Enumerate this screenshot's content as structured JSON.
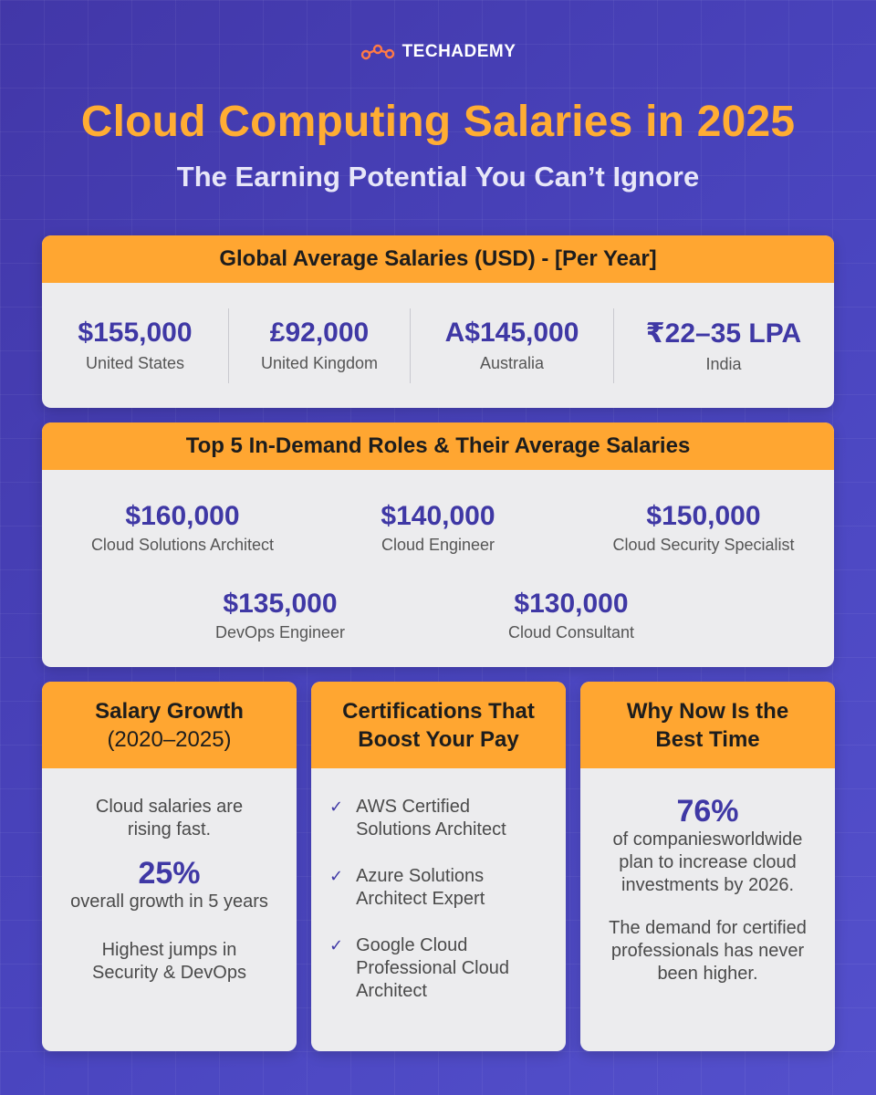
{
  "brand": {
    "logo_icon": "connected-circles-logo",
    "name_part1": "TECH",
    "name_part2": "ADEMY"
  },
  "title": "Cloud Computing Salaries in 2025",
  "subtitle": "The Earning Potential You Can’t Ignore",
  "global": {
    "heading": "Global Average Salaries (USD) - [Per Year]",
    "items": [
      {
        "value": "$155,000",
        "label": "United States"
      },
      {
        "value": "£92,000",
        "label": "United Kingdom"
      },
      {
        "value": "A$145,000",
        "label": "Australia"
      },
      {
        "value": "₹22–35 LPA",
        "label": "India"
      }
    ]
  },
  "roles": {
    "heading": "Top 5 In-Demand Roles & Their Average Salaries",
    "items": [
      {
        "value": "$160,000",
        "label": "Cloud Solutions Architect"
      },
      {
        "value": "$140,000",
        "label": "Cloud Engineer"
      },
      {
        "value": "$150,000",
        "label": "Cloud Security Specialist"
      },
      {
        "value": "$135,000",
        "label": "DevOps Engineer"
      },
      {
        "value": "$130,000",
        "label": "Cloud Consultant"
      }
    ]
  },
  "growth": {
    "heading_line1": "Salary Growth",
    "heading_line2": "(2020–2025)",
    "intro_line1": "Cloud salaries are",
    "intro_line2": "rising fast.",
    "stat": "25%",
    "stat_label": "overall growth in 5 years",
    "note_line1": "Highest jumps in",
    "note_line2": "Security & DevOps"
  },
  "certs": {
    "heading_line1": "Certifications That",
    "heading_line2": "Boost Your Pay",
    "check_icon": "checkmark-icon",
    "check_glyph": "✓",
    "items": [
      {
        "line1": "AWS Certified",
        "line2": "Solutions Architect",
        "line3": ""
      },
      {
        "line1": "Azure Solutions",
        "line2": "Architect Expert",
        "line3": ""
      },
      {
        "line1": "Google Cloud",
        "line2": "Professional Cloud",
        "line3": "Architect"
      }
    ]
  },
  "why": {
    "heading_line1": "Why Now Is the",
    "heading_line2": "Best Time",
    "stat": "76%",
    "stat_line1": "of companiesworldwide",
    "stat_line2": "plan to increase cloud",
    "stat_line3": "investments by 2026.",
    "note_line1": "The demand for certified",
    "note_line2": "professionals has never",
    "note_line3": "been higher."
  },
  "colors": {
    "background": "#4a45bf",
    "accent_orange": "#ffa631",
    "title_orange": "#ffad33",
    "value_purple": "#3f38a5",
    "card_bg": "#ececee"
  }
}
